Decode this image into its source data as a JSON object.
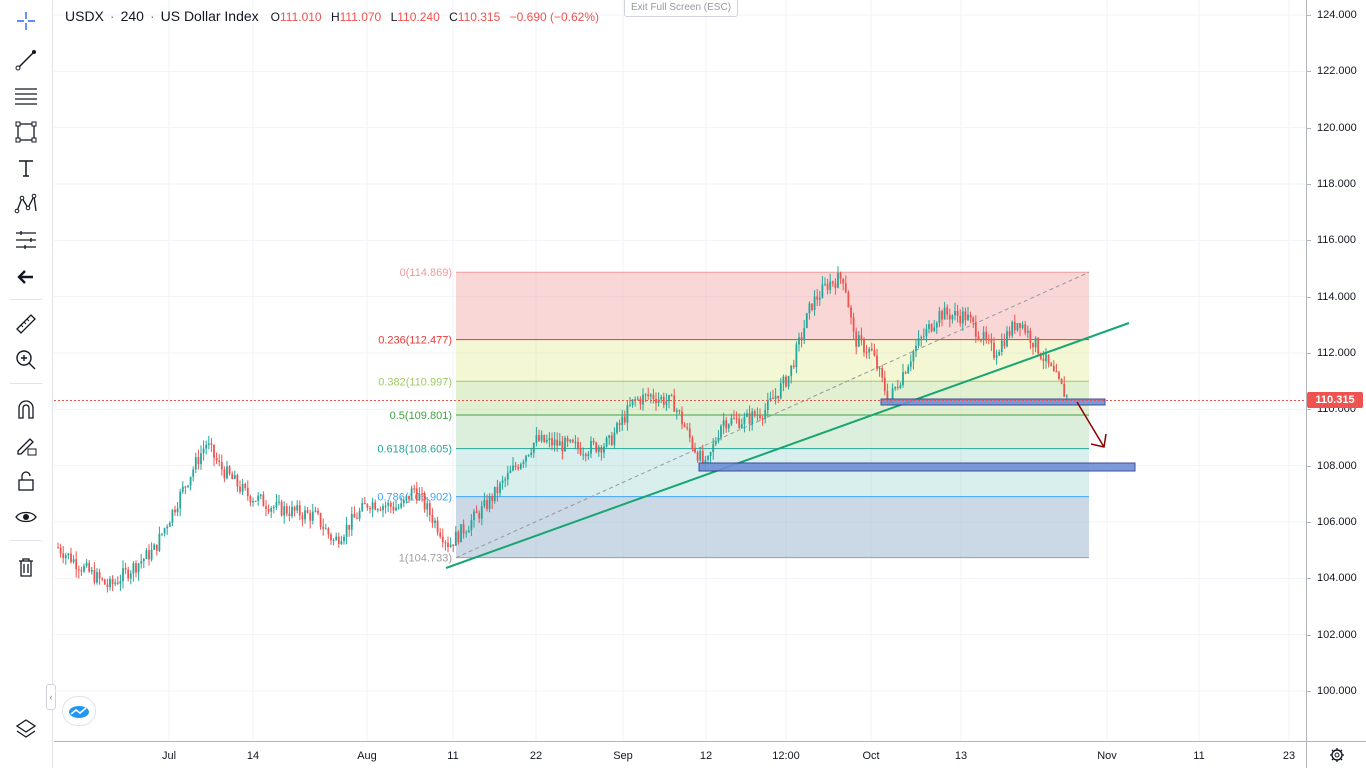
{
  "header": {
    "symbol": "USDX",
    "interval": "240",
    "name": "US Dollar Index",
    "open_label": "O",
    "open": "111.010",
    "high_label": "H",
    "high": "111.070",
    "low_label": "L",
    "low": "110.240",
    "close_label": "C",
    "close": "110.315",
    "change": "−0.690 (−0.62%)"
  },
  "exit_fullscreen_label": "Exit Full Screen (ESC)",
  "toolbar": {
    "icons": [
      "crosshair-icon",
      "trend-line-icon",
      "fib-lines-icon",
      "rectangle-icon",
      "text-icon",
      "pattern-icon",
      "position-icon",
      "back-arrow-icon",
      "ruler-icon",
      "zoom-in-icon",
      "magnet-icon",
      "pencil-lock-icon",
      "unlock-icon",
      "eye-icon",
      "trash-icon",
      "layers-icon"
    ]
  },
  "price_axis": {
    "ticks": [
      "124.000",
      "122.000",
      "120.000",
      "118.000",
      "116.000",
      "114.000",
      "112.000",
      "110.000",
      "108.000",
      "106.000",
      "104.000",
      "102.000",
      "100.000"
    ],
    "last_price": "110.315"
  },
  "time_axis": {
    "ticks": [
      "Jul",
      "14",
      "Aug",
      "11",
      "22",
      "Sep",
      "12",
      "12:00",
      "Oct",
      "13",
      "Nov",
      "11",
      "23"
    ]
  },
  "fibonacci": {
    "levels": [
      {
        "label": "0(114.869)",
        "ratio": 0,
        "price": 114.869,
        "color": "#ef9a9a"
      },
      {
        "label": "0.236(112.477)",
        "ratio": 0.236,
        "price": 112.477,
        "color": "#e53935"
      },
      {
        "label": "0.382(110.997)",
        "ratio": 0.382,
        "price": 110.997,
        "color": "#9ccc65"
      },
      {
        "label": "0.5(109.801)",
        "ratio": 0.5,
        "price": 109.801,
        "color": "#43a047"
      },
      {
        "label": "0.618(108.605)",
        "ratio": 0.618,
        "price": 108.605,
        "color": "#26a69a"
      },
      {
        "label": "0.786(106.902)",
        "ratio": 0.786,
        "price": 106.902,
        "color": "#42a5f5"
      },
      {
        "label": "1(104.733)",
        "ratio": 1,
        "price": 104.733,
        "color": "#9e9e9e"
      }
    ]
  },
  "colors": {
    "up": "#26a69a",
    "down": "#ef5350",
    "trendline": "#17a672",
    "zone": "#6f8fd6",
    "arrow": "#8b0000"
  },
  "chart_data": {
    "type": "candlestick",
    "symbol": "USDX",
    "interval": "240",
    "ylim": [
      99,
      124.4
    ],
    "last_price": 110.315,
    "price_path": [
      [
        "Jun 20",
        105.1
      ],
      [
        "Jun 26",
        104.4
      ],
      [
        "Jul 1",
        103.7
      ],
      [
        "Jul 6",
        105.0
      ],
      [
        "Jul 12",
        107.6
      ],
      [
        "Jul 14",
        108.8
      ],
      [
        "Jul 18",
        107.0
      ],
      [
        "Jul 24",
        106.5
      ],
      [
        "Aug 2",
        106.2
      ],
      [
        "Aug 5",
        105.3
      ],
      [
        "Aug 9",
        106.7
      ],
      [
        "Aug 11",
        105.2
      ],
      [
        "Aug 17",
        106.5
      ],
      [
        "Aug 22",
        108.9
      ],
      [
        "Aug 28",
        108.6
      ],
      [
        "Sep 1",
        108.7
      ],
      [
        "Sep 5",
        110.3
      ],
      [
        "Sep 7",
        110.5
      ],
      [
        "Sep 10",
        108.8
      ],
      [
        "Sep 12",
        107.9
      ],
      [
        "Sep 14",
        109.6
      ],
      [
        "Sep 19",
        110.0
      ],
      [
        "Sep 21",
        111.2
      ],
      [
        "Sep 24",
        113.7
      ],
      [
        "Sep 27",
        114.7
      ],
      [
        "Sep 29",
        112.4
      ],
      [
        "Oct 2",
        112.0
      ],
      [
        "Oct 4",
        110.3
      ],
      [
        "Oct 6",
        112.1
      ],
      [
        "Oct 10",
        113.4
      ],
      [
        "Oct 13",
        112.7
      ],
      [
        "Oct 18",
        112.0
      ],
      [
        "Oct 22",
        113.2
      ],
      [
        "Oct 24",
        112.1
      ],
      [
        "Oct 26",
        110.9
      ],
      [
        "Oct 27",
        110.315
      ]
    ]
  }
}
